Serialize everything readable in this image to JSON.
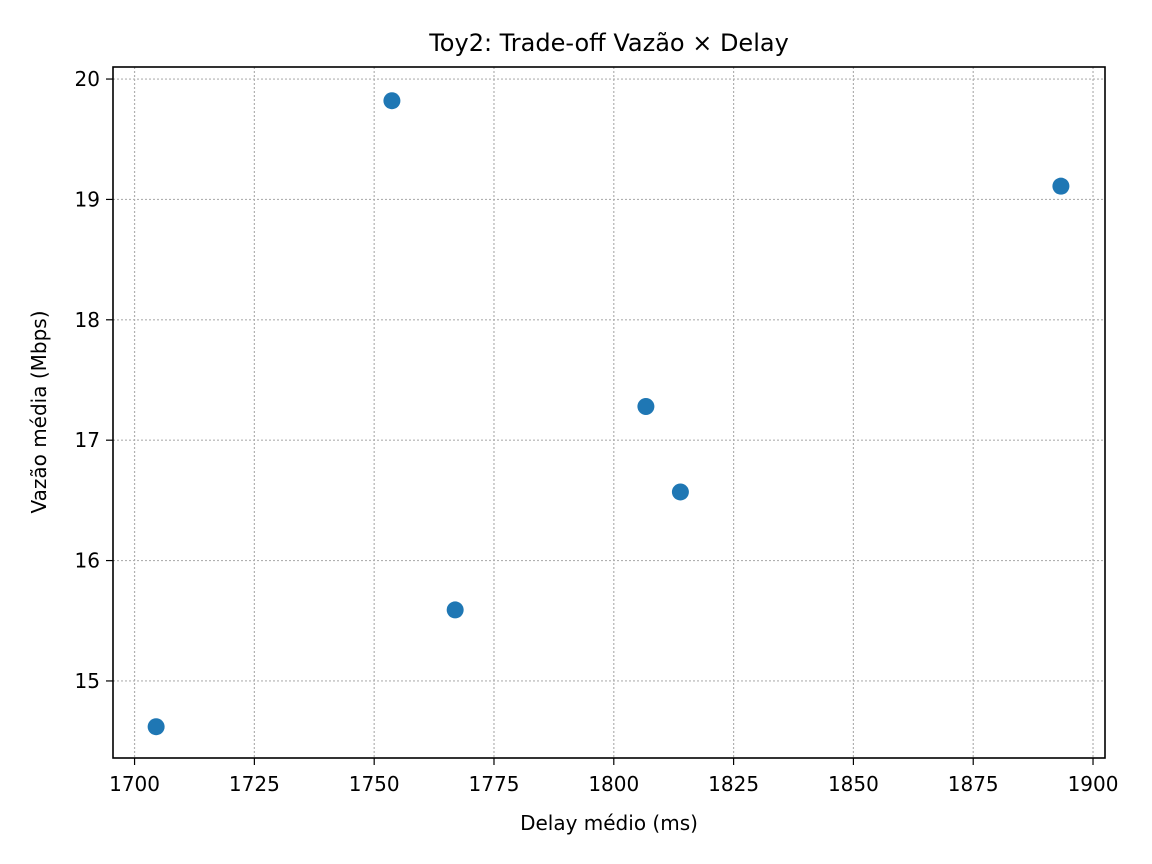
{
  "chart_data": {
    "type": "scatter",
    "title": "Toy2: Trade-off Vazão × Delay",
    "xlabel": "Delay médio (ms)",
    "ylabel": "Vazão média (Mbps)",
    "xlim": [
      1695.5,
      1902.5
    ],
    "ylim": [
      14.36,
      20.1
    ],
    "xticks": [
      1700,
      1725,
      1750,
      1775,
      1800,
      1825,
      1850,
      1875,
      1900
    ],
    "yticks": [
      15,
      16,
      17,
      18,
      19,
      20
    ],
    "grid": true,
    "marker_color": "#1f77b4",
    "points": [
      {
        "x": 1704.5,
        "y": 14.62
      },
      {
        "x": 1753.7,
        "y": 19.82
      },
      {
        "x": 1766.9,
        "y": 15.59
      },
      {
        "x": 1806.7,
        "y": 17.28
      },
      {
        "x": 1813.9,
        "y": 16.57
      },
      {
        "x": 1893.3,
        "y": 19.11
      }
    ]
  }
}
